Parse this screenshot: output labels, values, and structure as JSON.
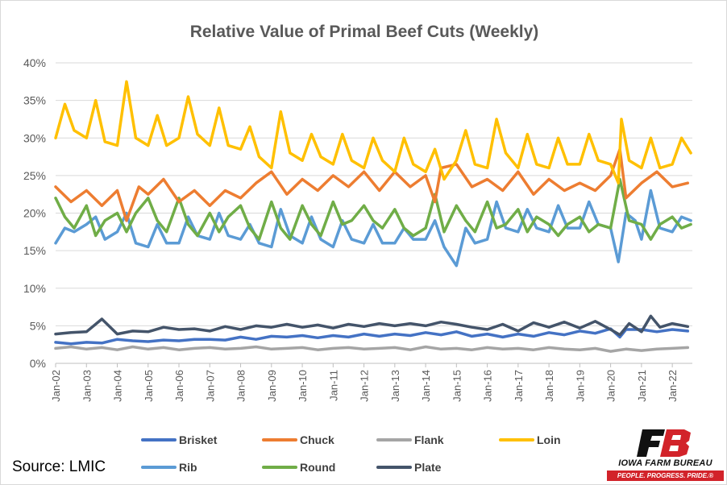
{
  "source": "Source: LMIC",
  "logo": {
    "name": "IOWA FARM BUREAU",
    "tagline": "PEOPLE. PROGRESS. PRIDE.®",
    "brand_color": "#d2232a"
  },
  "chart_data": {
    "type": "line",
    "title": "Relative Value of Primal Beef Cuts (Weekly)",
    "xlabel": "",
    "ylabel": "",
    "ylim": [
      0,
      40
    ],
    "yticks": [
      "0%",
      "5%",
      "10%",
      "15%",
      "20%",
      "25%",
      "30%",
      "35%",
      "40%"
    ],
    "xlim": [
      2002.0,
      2022.65
    ],
    "xticks": [
      "Jan-02",
      "Jan-03",
      "Jan-04",
      "Jan-05",
      "Jan-06",
      "Jan-07",
      "Jan-08",
      "Jan-09",
      "Jan-10",
      "Jan-11",
      "Jan-12",
      "Jan-13",
      "Jan-14",
      "Jan-15",
      "Jan-16",
      "Jan-17",
      "Jan-18",
      "Jan-19",
      "Jan-20",
      "Jan-21",
      "Jan-22"
    ],
    "grid": "horizontal",
    "legend_position": "bottom",
    "series": [
      {
        "name": "Brisket",
        "color": "#4472c4",
        "x": [
          2002.0,
          2002.5,
          2003.0,
          2003.5,
          2004.0,
          2004.5,
          2005.0,
          2005.5,
          2006.0,
          2006.5,
          2007.0,
          2007.5,
          2008.0,
          2008.5,
          2009.0,
          2009.5,
          2010.0,
          2010.5,
          2011.0,
          2011.5,
          2012.0,
          2012.5,
          2013.0,
          2013.5,
          2014.0,
          2014.5,
          2015.0,
          2015.5,
          2016.0,
          2016.5,
          2017.0,
          2017.5,
          2018.0,
          2018.5,
          2019.0,
          2019.5,
          2020.0,
          2020.3,
          2020.5,
          2021.0,
          2021.5,
          2022.0,
          2022.5
        ],
        "values": [
          2.8,
          2.6,
          2.8,
          2.7,
          3.2,
          3.0,
          2.9,
          3.1,
          3.0,
          3.2,
          3.2,
          3.1,
          3.5,
          3.2,
          3.6,
          3.5,
          3.7,
          3.4,
          3.7,
          3.5,
          3.9,
          3.6,
          3.9,
          3.7,
          4.1,
          3.8,
          4.2,
          3.6,
          3.9,
          3.5,
          3.9,
          3.6,
          4.1,
          3.8,
          4.3,
          4.0,
          4.6,
          3.5,
          4.5,
          4.5,
          4.2,
          4.5,
          4.3
        ]
      },
      {
        "name": "Chuck",
        "color": "#ed7d31",
        "x": [
          2002.0,
          2002.5,
          2003.0,
          2003.5,
          2004.0,
          2004.3,
          2004.7,
          2005.0,
          2005.5,
          2006.0,
          2006.5,
          2007.0,
          2007.5,
          2008.0,
          2008.5,
          2009.0,
          2009.5,
          2010.0,
          2010.5,
          2011.0,
          2011.5,
          2012.0,
          2012.5,
          2013.0,
          2013.5,
          2014.0,
          2014.3,
          2014.5,
          2015.0,
          2015.5,
          2016.0,
          2016.5,
          2017.0,
          2017.5,
          2018.0,
          2018.5,
          2019.0,
          2019.5,
          2020.0,
          2020.3,
          2020.5,
          2021.0,
          2021.5,
          2022.0,
          2022.5
        ],
        "values": [
          23.5,
          21.5,
          23.0,
          21.0,
          23.0,
          19.0,
          23.5,
          22.5,
          24.5,
          21.5,
          23.0,
          21.0,
          23.0,
          22.0,
          24.0,
          25.5,
          22.5,
          24.5,
          23.0,
          25.0,
          23.5,
          25.5,
          23.0,
          25.5,
          23.5,
          25.0,
          21.5,
          26.0,
          26.5,
          23.5,
          24.5,
          23.0,
          25.5,
          22.5,
          24.5,
          23.0,
          24.0,
          23.0,
          25.0,
          28.5,
          22.0,
          24.0,
          25.5,
          23.5,
          24.0
        ]
      },
      {
        "name": "Flank",
        "color": "#a5a5a5",
        "x": [
          2002.0,
          2002.5,
          2003.0,
          2003.5,
          2004.0,
          2004.5,
          2005.0,
          2005.5,
          2006.0,
          2006.5,
          2007.0,
          2007.5,
          2008.0,
          2008.5,
          2009.0,
          2009.5,
          2010.0,
          2010.5,
          2011.0,
          2011.5,
          2012.0,
          2012.5,
          2013.0,
          2013.5,
          2014.0,
          2014.5,
          2015.0,
          2015.5,
          2016.0,
          2016.5,
          2017.0,
          2017.5,
          2018.0,
          2018.5,
          2019.0,
          2019.5,
          2020.0,
          2020.5,
          2021.0,
          2021.5,
          2022.0,
          2022.5
        ],
        "values": [
          2.0,
          2.2,
          1.9,
          2.1,
          1.8,
          2.2,
          1.9,
          2.1,
          1.8,
          2.0,
          2.1,
          1.9,
          2.0,
          2.2,
          1.9,
          2.0,
          2.1,
          1.8,
          2.0,
          2.1,
          1.9,
          2.0,
          2.1,
          1.8,
          2.2,
          1.9,
          2.0,
          1.8,
          2.1,
          1.9,
          2.0,
          1.8,
          2.1,
          1.9,
          1.8,
          2.0,
          1.6,
          1.9,
          1.7,
          1.9,
          2.0,
          2.1
        ]
      },
      {
        "name": "Loin",
        "color": "#ffc000",
        "x": [
          2002.0,
          2002.3,
          2002.6,
          2003.0,
          2003.3,
          2003.6,
          2004.0,
          2004.3,
          2004.6,
          2005.0,
          2005.3,
          2005.6,
          2006.0,
          2006.3,
          2006.6,
          2007.0,
          2007.3,
          2007.6,
          2008.0,
          2008.3,
          2008.6,
          2009.0,
          2009.3,
          2009.6,
          2010.0,
          2010.3,
          2010.6,
          2011.0,
          2011.3,
          2011.6,
          2012.0,
          2012.3,
          2012.6,
          2013.0,
          2013.3,
          2013.6,
          2014.0,
          2014.3,
          2014.6,
          2015.0,
          2015.3,
          2015.6,
          2016.0,
          2016.3,
          2016.6,
          2017.0,
          2017.3,
          2017.6,
          2018.0,
          2018.3,
          2018.6,
          2019.0,
          2019.3,
          2019.6,
          2020.0,
          2020.25,
          2020.35,
          2020.6,
          2021.0,
          2021.3,
          2021.6,
          2022.0,
          2022.3,
          2022.6
        ],
        "values": [
          30.0,
          34.5,
          31.0,
          30.0,
          35.0,
          29.5,
          29.0,
          37.5,
          30.0,
          29.0,
          33.0,
          29.0,
          30.0,
          35.5,
          30.5,
          29.0,
          34.0,
          29.0,
          28.5,
          31.5,
          27.5,
          26.0,
          33.5,
          28.0,
          27.0,
          30.5,
          27.5,
          26.5,
          30.5,
          27.0,
          26.0,
          30.0,
          27.0,
          25.5,
          30.0,
          26.5,
          25.5,
          28.5,
          24.5,
          27.0,
          31.0,
          26.5,
          26.0,
          32.5,
          28.0,
          26.0,
          30.5,
          26.5,
          26.0,
          30.0,
          26.5,
          26.5,
          30.5,
          27.0,
          26.5,
          24.0,
          32.5,
          27.0,
          26.0,
          30.0,
          26.0,
          26.5,
          30.0,
          28.0
        ]
      },
      {
        "name": "Rib",
        "color": "#5b9bd5",
        "x": [
          2002.0,
          2002.3,
          2002.6,
          2003.0,
          2003.3,
          2003.6,
          2004.0,
          2004.3,
          2004.6,
          2005.0,
          2005.3,
          2005.6,
          2006.0,
          2006.3,
          2006.6,
          2007.0,
          2007.3,
          2007.6,
          2008.0,
          2008.3,
          2008.6,
          2009.0,
          2009.3,
          2009.6,
          2010.0,
          2010.3,
          2010.6,
          2011.0,
          2011.3,
          2011.6,
          2012.0,
          2012.3,
          2012.6,
          2013.0,
          2013.3,
          2013.6,
          2014.0,
          2014.3,
          2014.6,
          2015.0,
          2015.3,
          2015.6,
          2016.0,
          2016.3,
          2016.6,
          2017.0,
          2017.3,
          2017.6,
          2018.0,
          2018.3,
          2018.6,
          2019.0,
          2019.3,
          2019.6,
          2020.0,
          2020.25,
          2020.5,
          2020.8,
          2021.0,
          2021.3,
          2021.6,
          2022.0,
          2022.3,
          2022.6
        ],
        "values": [
          16.0,
          18.0,
          17.5,
          18.5,
          19.5,
          16.5,
          17.5,
          20.0,
          16.0,
          15.5,
          18.5,
          16.0,
          16.0,
          19.5,
          17.0,
          16.5,
          20.0,
          17.0,
          16.5,
          18.5,
          16.0,
          15.5,
          20.5,
          17.0,
          16.0,
          19.5,
          16.5,
          15.5,
          19.0,
          16.5,
          16.0,
          18.5,
          16.0,
          16.0,
          18.0,
          16.5,
          16.5,
          19.0,
          15.5,
          13.0,
          18.0,
          16.0,
          16.5,
          21.5,
          18.0,
          17.5,
          20.5,
          18.0,
          17.5,
          21.0,
          18.0,
          18.0,
          21.5,
          18.5,
          18.0,
          13.5,
          20.0,
          19.0,
          16.5,
          23.0,
          18.0,
          17.5,
          19.5,
          19.0
        ]
      },
      {
        "name": "Round",
        "color": "#70ad47",
        "x": [
          2002.0,
          2002.3,
          2002.6,
          2003.0,
          2003.3,
          2003.6,
          2004.0,
          2004.3,
          2004.6,
          2005.0,
          2005.3,
          2005.6,
          2006.0,
          2006.3,
          2006.6,
          2007.0,
          2007.3,
          2007.6,
          2008.0,
          2008.3,
          2008.6,
          2009.0,
          2009.3,
          2009.6,
          2010.0,
          2010.3,
          2010.6,
          2011.0,
          2011.3,
          2011.6,
          2012.0,
          2012.3,
          2012.6,
          2013.0,
          2013.3,
          2013.6,
          2014.0,
          2014.3,
          2014.6,
          2015.0,
          2015.3,
          2015.6,
          2016.0,
          2016.3,
          2016.6,
          2017.0,
          2017.3,
          2017.6,
          2018.0,
          2018.3,
          2018.6,
          2019.0,
          2019.3,
          2019.6,
          2020.0,
          2020.3,
          2020.6,
          2021.0,
          2021.3,
          2021.6,
          2022.0,
          2022.3,
          2022.6
        ],
        "values": [
          22.0,
          19.5,
          18.0,
          21.0,
          17.0,
          19.0,
          20.0,
          17.5,
          20.0,
          22.0,
          19.0,
          17.5,
          22.0,
          18.5,
          17.0,
          20.0,
          17.5,
          19.5,
          21.0,
          18.0,
          16.5,
          21.5,
          18.0,
          16.5,
          21.0,
          18.5,
          17.0,
          21.5,
          18.5,
          19.0,
          21.0,
          19.0,
          18.0,
          20.5,
          18.0,
          17.0,
          18.0,
          22.5,
          17.5,
          21.0,
          19.0,
          17.5,
          21.5,
          18.0,
          18.5,
          20.5,
          17.5,
          19.5,
          18.5,
          17.0,
          18.5,
          19.5,
          17.5,
          18.5,
          18.0,
          24.5,
          19.0,
          18.5,
          16.5,
          18.5,
          19.5,
          18.0,
          18.5
        ]
      },
      {
        "name": "Plate",
        "color": "#44546a",
        "x": [
          2002.0,
          2002.5,
          2003.0,
          2003.5,
          2004.0,
          2004.5,
          2005.0,
          2005.5,
          2006.0,
          2006.5,
          2007.0,
          2007.5,
          2008.0,
          2008.5,
          2009.0,
          2009.5,
          2010.0,
          2010.5,
          2011.0,
          2011.5,
          2012.0,
          2012.5,
          2013.0,
          2013.5,
          2014.0,
          2014.5,
          2015.0,
          2015.5,
          2016.0,
          2016.5,
          2017.0,
          2017.5,
          2018.0,
          2018.5,
          2019.0,
          2019.5,
          2020.0,
          2020.3,
          2020.6,
          2021.0,
          2021.3,
          2021.6,
          2022.0,
          2022.5
        ],
        "values": [
          3.9,
          4.1,
          4.2,
          5.9,
          3.9,
          4.3,
          4.2,
          4.8,
          4.5,
          4.6,
          4.3,
          4.9,
          4.5,
          5.0,
          4.8,
          5.2,
          4.8,
          5.1,
          4.7,
          5.2,
          4.9,
          5.3,
          5.0,
          5.3,
          5.0,
          5.5,
          5.2,
          4.8,
          4.5,
          5.2,
          4.3,
          5.4,
          4.8,
          5.5,
          4.7,
          5.6,
          4.5,
          3.8,
          5.3,
          4.2,
          6.3,
          4.8,
          5.3,
          4.9
        ]
      }
    ]
  }
}
